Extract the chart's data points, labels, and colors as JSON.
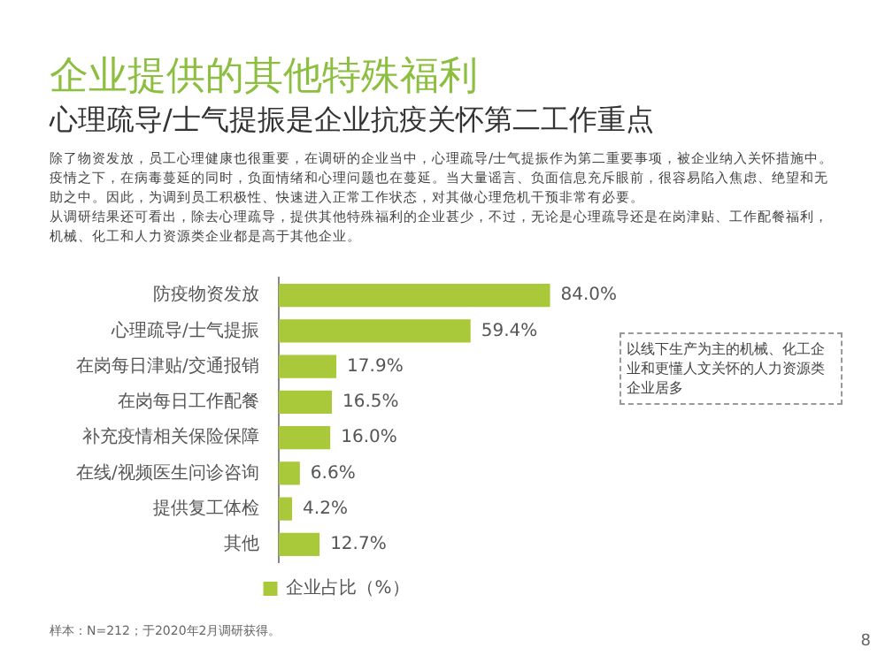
{
  "chart_data": {
    "type": "bar",
    "orientation": "horizontal",
    "title": "企业提供的其他特殊福利",
    "subtitle": "心理疏导/士气提振是企业抗疫关怀第二工作重点",
    "categories": [
      "防疫物资发放",
      "心理疏导/士气提振",
      "在岗每日津贴/交通报销",
      "在岗每日工作配餐",
      "补充疫情相关保险保障",
      "在线/视频医生问诊咨询",
      "提供复工体检",
      "其他"
    ],
    "series": [
      {
        "name": "企业占比（%）",
        "color": "#a9c93a",
        "values": [
          84.0,
          59.4,
          17.9,
          16.5,
          16.0,
          6.6,
          4.2,
          12.7
        ],
        "value_labels": [
          "84.0%",
          "59.4%",
          "17.9%",
          "16.5%",
          "16.0%",
          "6.6%",
          "4.2%",
          "12.7%"
        ]
      }
    ],
    "annotations": [
      "除了物资发放，员工心理健康也很重要，在调研的企业当中，心理疏导/士气提振作为第二重要事项，被企业纳入关怀措施中。疫情之下，在病毒蔓延的同时，负面情绪和心理问题也在蔓延。当大量谣言、负面信息充斥眼前，很容易陷入焦虑、绝望和无助之中。因此，为调到员工积极性、快速进入正常工作状态，对其做心理危机干预非常有必要。",
      "从调研结果还可看出，除去心理疏导，提供其他特殊福利的企业甚少，不过，无论是心理疏导还是在岗津贴、工作配餐福利，机械、化工和人力资源类企业都是高于其他企业。",
      "以线下生产为主的机械、化工企业和更懂人文关怀的人力资源类企业居多",
      "样本：N=212；于2020年2月调研获得。",
      "8"
    ],
    "grid": false,
    "legend": "bottom"
  }
}
